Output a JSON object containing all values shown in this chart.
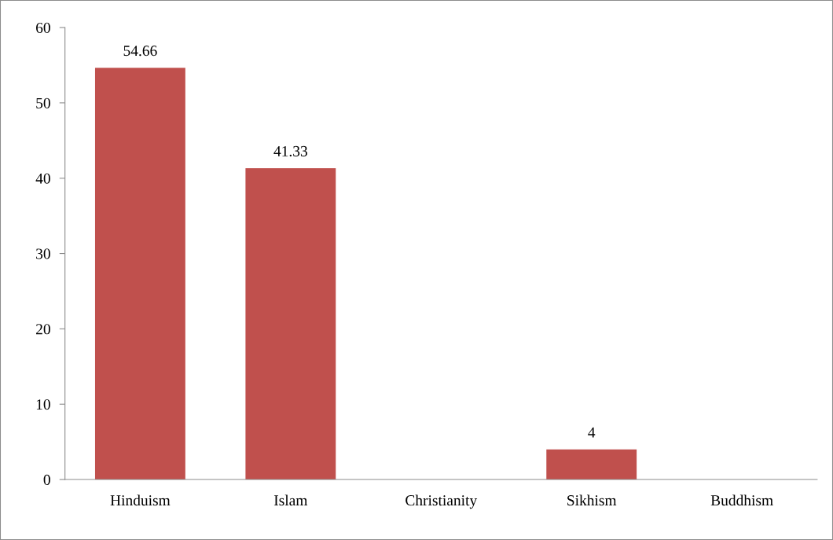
{
  "chart_data": {
    "type": "bar",
    "categories": [
      "Hinduism",
      "Islam",
      "Christianity",
      "Sikhism",
      "Buddhism"
    ],
    "values": [
      54.66,
      41.33,
      0,
      4,
      0
    ],
    "value_labels": [
      "54.66",
      "41.33",
      null,
      "4",
      null
    ],
    "color": "#c0504d",
    "ylim": [
      0,
      60
    ],
    "yticks": [
      0,
      10,
      20,
      30,
      40,
      50,
      60
    ],
    "grid": false
  }
}
